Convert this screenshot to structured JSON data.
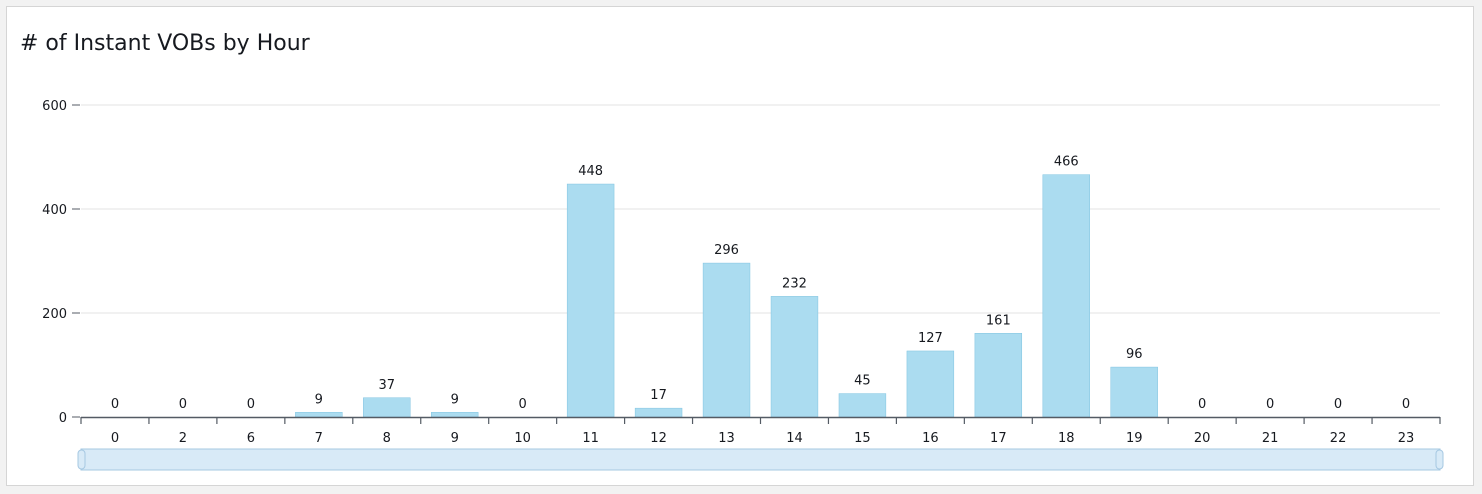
{
  "title": "# of Instant VOBs by Hour",
  "colors": {
    "bar": "#abdcf0",
    "bar_stroke": "#7fc3e0",
    "grid": "#e3e3e3",
    "axis": "#545b64",
    "scrollbar_fill": "#d8eaf7",
    "scrollbar_stroke": "#a6c8e2"
  },
  "chart_data": {
    "type": "bar",
    "title": "# of Instant VOBs by Hour",
    "categories": [
      "0",
      "2",
      "6",
      "7",
      "8",
      "9",
      "10",
      "11",
      "12",
      "13",
      "14",
      "15",
      "16",
      "17",
      "18",
      "19",
      "20",
      "21",
      "22",
      "23"
    ],
    "values": [
      0,
      0,
      0,
      9,
      37,
      9,
      0,
      448,
      17,
      296,
      232,
      45,
      127,
      161,
      466,
      96,
      0,
      0,
      0,
      0
    ],
    "xlabel": "",
    "ylabel": "",
    "ylim": [
      0,
      600
    ],
    "yticks": [
      0,
      200,
      400,
      600
    ],
    "grid": true,
    "data_labels": true,
    "legend": "none",
    "range_scrollbar": true
  }
}
